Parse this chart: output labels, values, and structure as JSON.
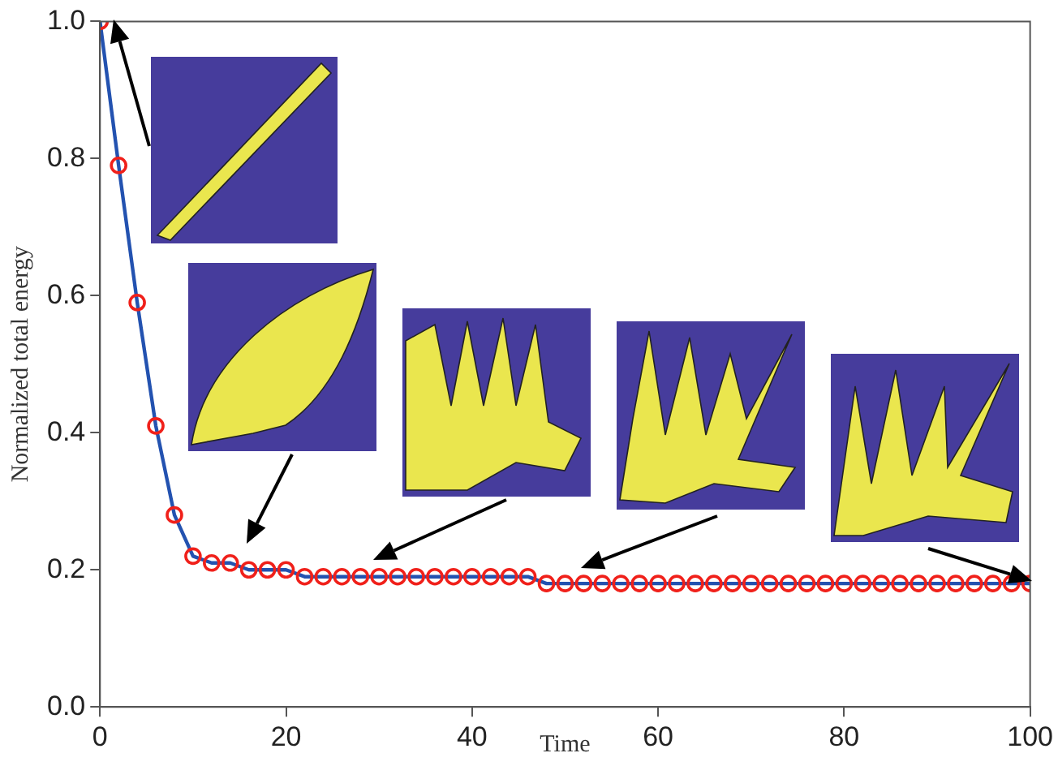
{
  "chart_data": {
    "type": "line",
    "xlabel": "Time",
    "ylabel": "Normalized total energy",
    "x": [
      0,
      2,
      4,
      6,
      8,
      10,
      12,
      14,
      16,
      18,
      20,
      22,
      24,
      26,
      28,
      30,
      32,
      34,
      36,
      38,
      40,
      42,
      44,
      46,
      48,
      50,
      52,
      54,
      56,
      58,
      60,
      62,
      64,
      66,
      68,
      70,
      72,
      74,
      76,
      78,
      80,
      82,
      84,
      86,
      88,
      90,
      92,
      94,
      96,
      98,
      100
    ],
    "series": [
      {
        "color": "#2352b0",
        "values": [
          1.0,
          0.79,
          0.59,
          0.41,
          0.28,
          0.22,
          0.21,
          0.21,
          0.2,
          0.2,
          0.2,
          0.19,
          0.19,
          0.19,
          0.19,
          0.19,
          0.19,
          0.19,
          0.19,
          0.19,
          0.19,
          0.19,
          0.19,
          0.19,
          0.18,
          0.18,
          0.18,
          0.18,
          0.18,
          0.18,
          0.18,
          0.18,
          0.18,
          0.18,
          0.18,
          0.18,
          0.18,
          0.18,
          0.18,
          0.18,
          0.18,
          0.18,
          0.18,
          0.18,
          0.18,
          0.18,
          0.18,
          0.18,
          0.18,
          0.18,
          0.18
        ]
      }
    ],
    "xlim": [
      0,
      100
    ],
    "xticks": [
      0,
      20,
      40,
      60,
      80,
      100
    ],
    "ylim": [
      0,
      1
    ],
    "yticks": [
      {
        "value": 0,
        "label": "0.0"
      },
      {
        "value": 0.2,
        "label": "0.2"
      },
      {
        "value": 0.4,
        "label": "0.4"
      },
      {
        "value": 0.6,
        "label": "0.6"
      },
      {
        "value": 0.8,
        "label": "0.8"
      },
      {
        "value": 1,
        "label": "1.0"
      }
    ],
    "grid": false,
    "legend": false,
    "marker": "circle",
    "line_style": "solid"
  }
}
